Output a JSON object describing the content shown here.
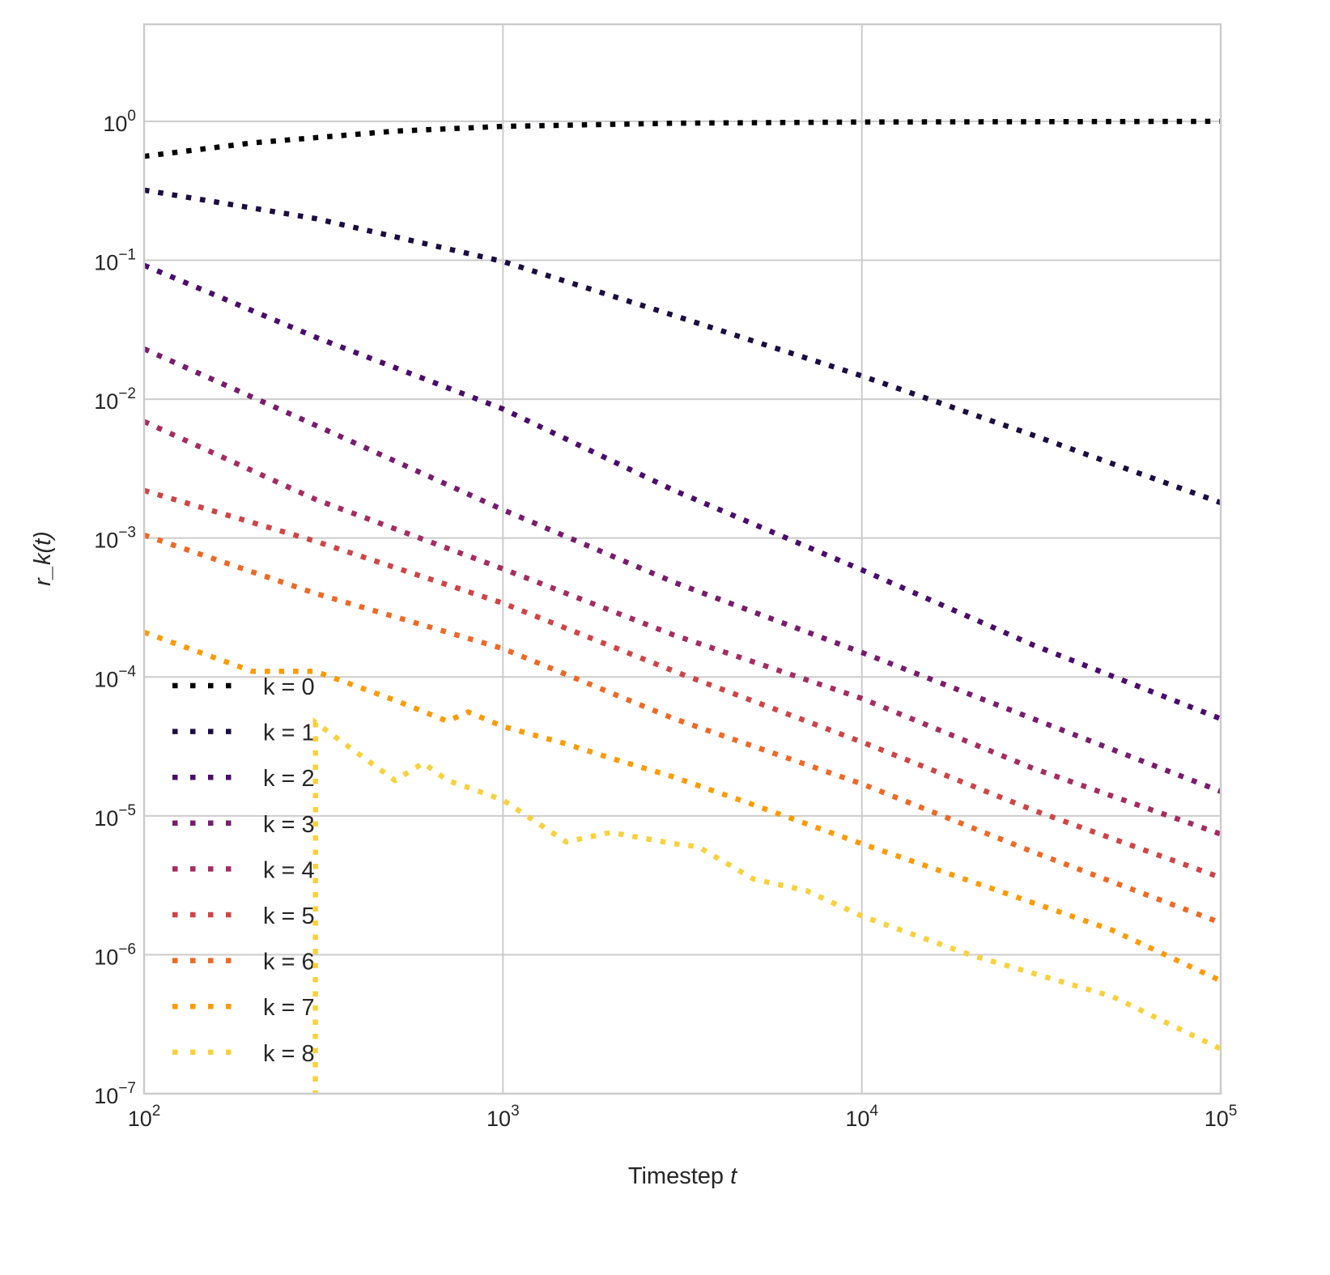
{
  "chart_data": {
    "type": "line",
    "title": "",
    "xlabel": "Timestep",
    "xlabel_var": "t",
    "ylabel": "r_k(t)",
    "xscale": "log",
    "yscale": "log",
    "xlim": [
      100,
      100000
    ],
    "ylim": [
      1e-07,
      5
    ],
    "grid": true,
    "legend_position": "lower-left",
    "x_ticks": [
      {
        "base": "10",
        "exp": "2",
        "value": 100
      },
      {
        "base": "10",
        "exp": "3",
        "value": 1000
      },
      {
        "base": "10",
        "exp": "4",
        "value": 10000
      },
      {
        "base": "10",
        "exp": "5",
        "value": 100000
      }
    ],
    "y_ticks": [
      {
        "base": "10",
        "exp": "0",
        "value": 1
      },
      {
        "base": "10",
        "exp": "−1",
        "value": 0.1
      },
      {
        "base": "10",
        "exp": "−2",
        "value": 0.01
      },
      {
        "base": "10",
        "exp": "−3",
        "value": 0.001
      },
      {
        "base": "10",
        "exp": "−4",
        "value": 0.0001
      },
      {
        "base": "10",
        "exp": "−5",
        "value": 1e-05
      },
      {
        "base": "10",
        "exp": "−6",
        "value": 1e-06
      },
      {
        "base": "10",
        "exp": "−7",
        "value": 1e-07
      }
    ],
    "series": [
      {
        "name": "k = 0",
        "color": "#000004",
        "x": [
          100,
          200,
          500,
          1000,
          3000,
          10000,
          100000
        ],
        "y": [
          0.56,
          0.7,
          0.85,
          0.92,
          0.97,
          0.99,
          1.0
        ]
      },
      {
        "name": "k = 1",
        "color": "#1b0c41",
        "x": [
          100,
          300,
          1000,
          3000,
          10000,
          30000,
          100000
        ],
        "y": [
          0.32,
          0.2,
          0.098,
          0.04,
          0.0147,
          0.0055,
          0.0018
        ]
      },
      {
        "name": "k = 2",
        "color": "#4a0c6b",
        "x": [
          100,
          300,
          1000,
          3000,
          10000,
          30000,
          100000
        ],
        "y": [
          0.092,
          0.028,
          0.0085,
          0.0022,
          0.00059,
          0.00017,
          5e-05
        ]
      },
      {
        "name": "k = 3",
        "color": "#781c6d",
        "x": [
          100,
          300,
          1000,
          3000,
          10000,
          30000,
          100000
        ],
        "y": [
          0.023,
          0.0065,
          0.0016,
          0.00048,
          0.00015,
          5e-05,
          1.5e-05
        ]
      },
      {
        "name": "k = 4",
        "color": "#a52c60",
        "x": [
          100,
          300,
          1000,
          3000,
          10000,
          30000,
          100000
        ],
        "y": [
          0.0069,
          0.0019,
          0.0006,
          0.0002,
          7e-05,
          2.2e-05,
          7.4e-06
        ]
      },
      {
        "name": "k = 5",
        "color": "#cf4446",
        "x": [
          100,
          300,
          1000,
          3000,
          10000,
          30000,
          100000
        ],
        "y": [
          0.0022,
          0.00095,
          0.00034,
          0.00011,
          3.4e-05,
          1.1e-05,
          3.6e-06
        ]
      },
      {
        "name": "k = 6",
        "color": "#ed6925",
        "x": [
          100,
          300,
          1000,
          3000,
          10000,
          30000,
          100000
        ],
        "y": [
          0.00105,
          0.0004,
          0.00016,
          5e-05,
          1.7e-05,
          5.5e-06,
          1.7e-06
        ]
      },
      {
        "name": "k = 7",
        "color": "#fb9b06",
        "x": [
          100,
          200,
          300,
          500,
          700,
          800,
          1000,
          1500,
          2000,
          3000,
          5000,
          10000,
          20000,
          50000,
          100000
        ],
        "y": [
          0.00021,
          0.00011,
          0.00011,
          6.8e-05,
          4.8e-05,
          5.6e-05,
          4.4e-05,
          3.3e-05,
          2.6e-05,
          1.9e-05,
          1.2e-05,
          6.3e-06,
          3.4e-06,
          1.5e-06,
          6.5e-07
        ]
      },
      {
        "name": "k = 8",
        "color": "#f7d13d",
        "x": [
          300,
          300.5,
          500,
          600,
          700,
          800,
          1000,
          1500,
          2000,
          3000,
          3500,
          5000,
          7000,
          10000,
          20000,
          50000,
          100000
        ],
        "y": [
          1e-09,
          4.7e-05,
          1.8e-05,
          2.4e-05,
          1.8e-05,
          1.6e-05,
          1.3e-05,
          6.5e-06,
          7.6e-06,
          6.3e-06,
          6e-06,
          3.5e-06,
          2.9e-06,
          1.9e-06,
          1e-06,
          5e-07,
          2.1e-07
        ]
      }
    ]
  }
}
